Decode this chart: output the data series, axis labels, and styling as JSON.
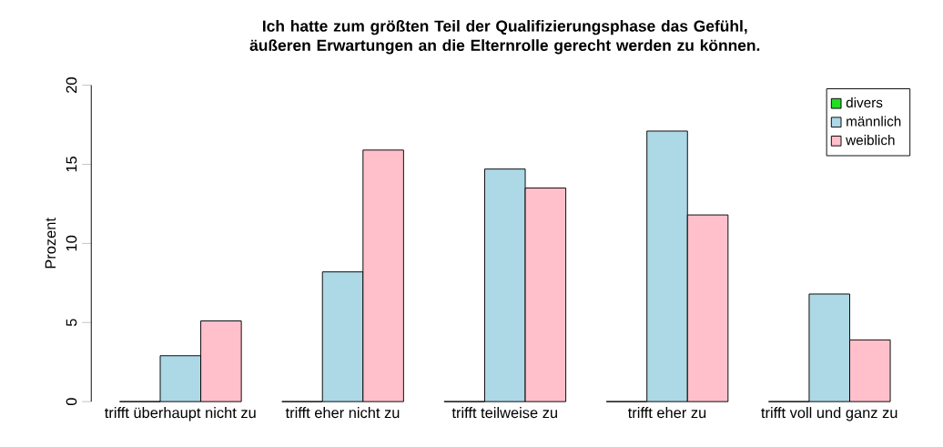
{
  "chart_data": {
    "type": "bar",
    "title": "Ich hatte zum größten Teil der Qualifizierungsphase das Gefühl, äußeren Erwartungen an die Elternrolle gerecht werden zu können.",
    "ylabel": "Prozent",
    "categories": [
      "trifft überhaupt nicht zu",
      "trifft eher nicht zu",
      "trifft teilweise zu",
      "trifft eher zu",
      "trifft voll und ganz zu"
    ],
    "series": [
      {
        "name": "divers",
        "color": "#22dd22",
        "values": [
          0,
          0,
          0,
          0,
          0
        ]
      },
      {
        "name": "männlich",
        "color": "#add8e6",
        "values": [
          2.9,
          8.2,
          14.7,
          17.1,
          6.8
        ]
      },
      {
        "name": "weiblich",
        "color": "#ffc0cb",
        "values": [
          5.1,
          15.9,
          13.5,
          11.8,
          3.9
        ]
      }
    ],
    "ylim": [
      0,
      20
    ],
    "yticks": [
      0,
      5,
      10,
      15,
      20
    ],
    "legend": "top right",
    "grid": false
  }
}
